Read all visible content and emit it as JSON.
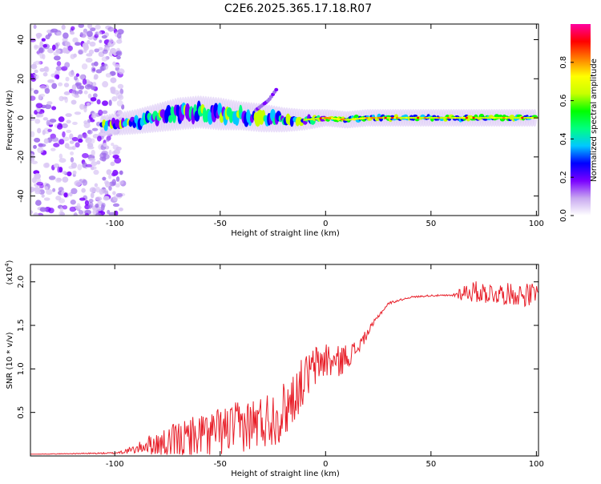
{
  "title": "C2E6.2025.365.17.18.R07",
  "chart_data": [
    {
      "type": "heatmap",
      "title": "C2E6.2025.365.17.18.R07",
      "xlabel": "Height of straight line (km)",
      "ylabel": "Frequency (Hz)",
      "xlim": [
        -140,
        101
      ],
      "ylim": [
        -50,
        48
      ],
      "xticks": [
        -100,
        -50,
        0,
        50,
        100
      ],
      "xtick_labels": [
        "-100",
        "-50",
        "0",
        "50",
        "100"
      ],
      "yticks": [
        -40,
        -20,
        0,
        20,
        40
      ],
      "ytick_labels": [
        "-40",
        "-20",
        "0",
        "20",
        "40"
      ],
      "colorbar": {
        "label": "Normalized spectral amplitude",
        "range": [
          0,
          1
        ],
        "ticks": [
          0.0,
          0.2,
          0.4,
          0.6,
          0.8
        ],
        "tick_labels": [
          "0.0",
          "0.2",
          "0.4",
          "0.6",
          "0.8"
        ],
        "colors": [
          "#ffffff",
          "#c8a8f0",
          "#7a00ff",
          "#0000ff",
          "#00c8ff",
          "#00ff80",
          "#00ff00",
          "#c8ff00",
          "#ffff00",
          "#ff8000",
          "#ff0000",
          "#ff00a0"
        ]
      },
      "ridge": {
        "x": [
          -105,
          -90,
          -80,
          -70,
          -60,
          -50,
          -40,
          -30,
          -20,
          -10,
          0,
          10,
          20,
          30,
          40,
          50,
          60,
          70,
          80,
          90,
          100
        ],
        "center_hz": [
          -4,
          -2,
          0,
          2,
          3,
          2,
          1,
          0,
          -1,
          -1,
          0,
          -1,
          0,
          0,
          0,
          0,
          0,
          0,
          0,
          0,
          0
        ],
        "halfwidth_hz": [
          3,
          4,
          5,
          6,
          6,
          6,
          5,
          5,
          4,
          3,
          2,
          2,
          2,
          2,
          2,
          2,
          2,
          2,
          2,
          2,
          2
        ]
      },
      "branch": {
        "x": [
          -33,
          -27,
          -23
        ],
        "hz": [
          4,
          9,
          15
        ]
      },
      "noise_region": {
        "x_range": [
          -140,
          -100
        ],
        "hz_range": [
          -50,
          48
        ]
      }
    },
    {
      "type": "line",
      "title": "",
      "xlabel": "Height of straight line (km)",
      "ylabel": "SNR (10 * v/v)",
      "multiplier_label": "(x10",
      "multiplier_exp": "4",
      "multiplier_close": ")",
      "xlim": [
        -140,
        101
      ],
      "ylim": [
        0,
        2.2
      ],
      "xticks": [
        -100,
        -50,
        0,
        50,
        100
      ],
      "xtick_labels": [
        "-100",
        "-50",
        "0",
        "50",
        "100"
      ],
      "yticks": [
        0.5,
        1.0,
        1.5,
        2.0
      ],
      "ytick_labels": [
        "0.5",
        "1.0",
        "1.5",
        "2.0"
      ],
      "series": [
        {
          "name": "SNR",
          "color": "#e8202a",
          "envelope": {
            "x": [
              -140,
              -100,
              -90,
              -85,
              -80,
              -70,
              -60,
              -50,
              -40,
              -30,
              -20,
              -10,
              -5,
              0,
              5,
              10,
              15,
              20,
              25,
              30,
              40,
              50,
              60,
              65,
              70,
              80,
              90,
              100
            ],
            "baseline": [
              0.02,
              0.03,
              0.06,
              0.1,
              0.08,
              0.1,
              0.15,
              0.2,
              0.25,
              0.3,
              0.4,
              0.8,
              0.95,
              1.05,
              1.0,
              1.1,
              1.2,
              1.4,
              1.6,
              1.75,
              1.82,
              1.84,
              1.84,
              1.85,
              1.85,
              1.83,
              1.82,
              1.8
            ],
            "amplitude": [
              0.0,
              0.02,
              0.1,
              0.2,
              0.3,
              0.45,
              0.55,
              0.55,
              0.6,
              0.65,
              0.7,
              0.55,
              0.5,
              0.45,
              0.4,
              0.3,
              0.2,
              0.1,
              0.05,
              0.03,
              0.02,
              0.02,
              0.02,
              0.2,
              0.25,
              0.25,
              0.25,
              0.3
            ]
          }
        }
      ]
    }
  ]
}
